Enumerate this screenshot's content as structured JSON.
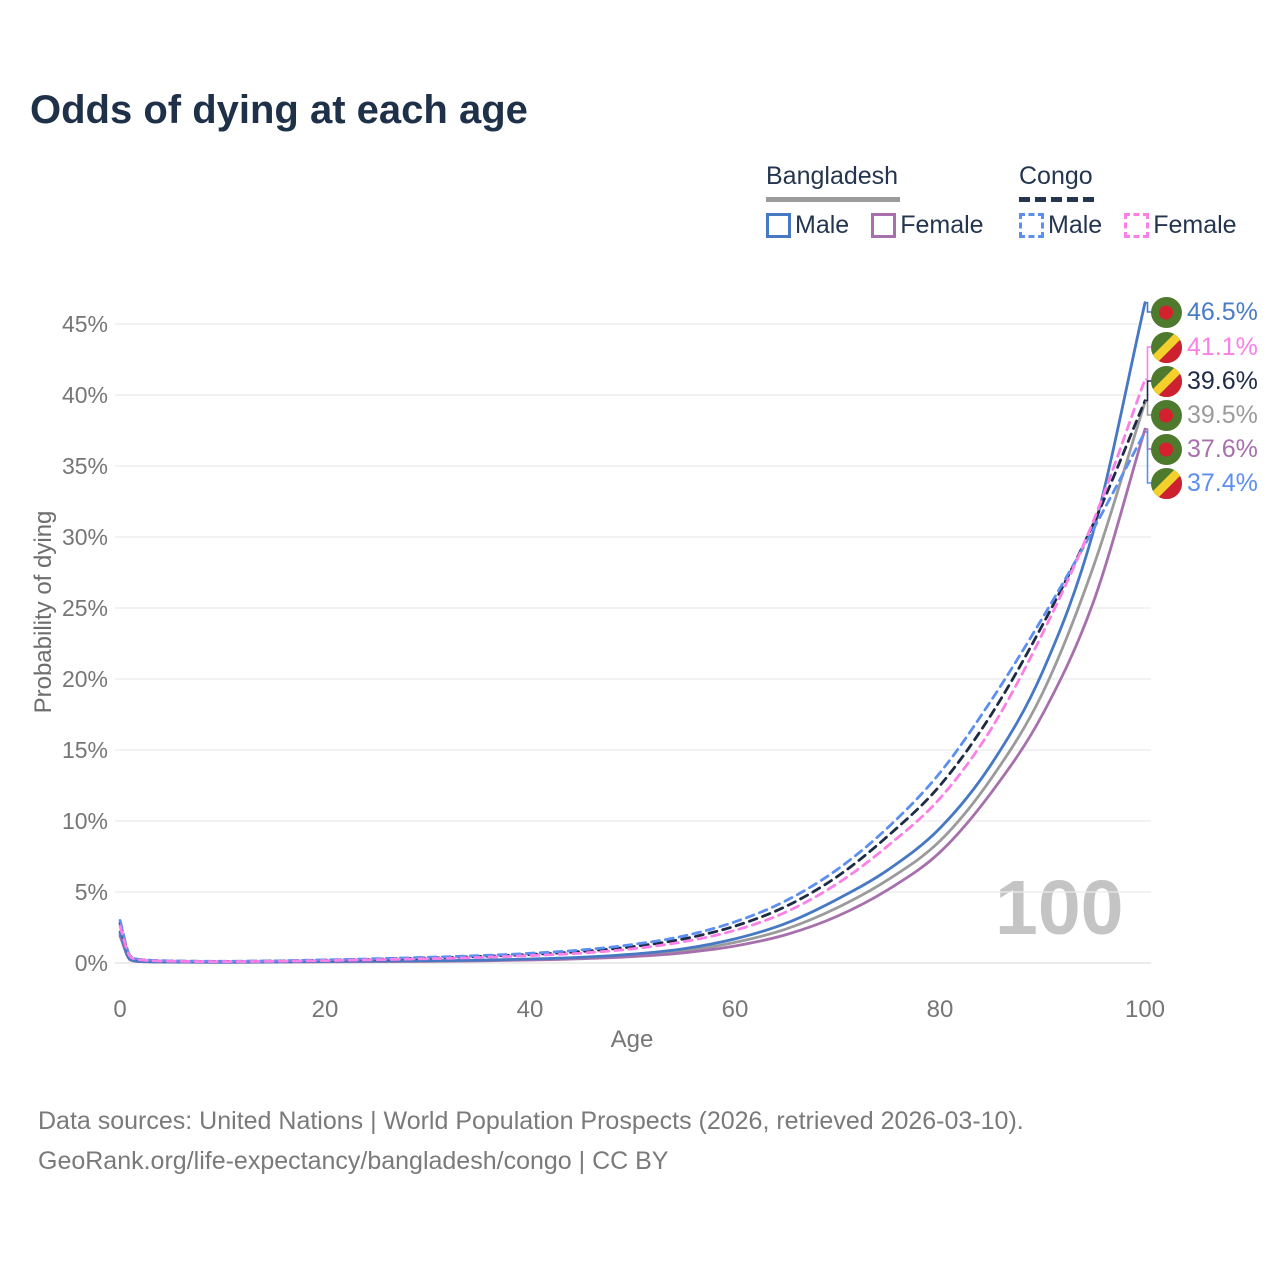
{
  "title": "Odds of dying at each age",
  "legend": {
    "groups": [
      {
        "label": "Bangladesh",
        "line_style": "solid",
        "underline_color": "#9B9B9B",
        "items": [
          {
            "label": "Male",
            "color": "#4678C4"
          },
          {
            "label": "Female",
            "color": "#A770AD"
          }
        ]
      },
      {
        "label": "Congo",
        "line_style": "dashed",
        "underline_color": "#24364F",
        "items": [
          {
            "label": "Male",
            "color": "#5D8FF0"
          },
          {
            "label": "Female",
            "color": "#FA80E8"
          }
        ]
      }
    ]
  },
  "axes": {
    "y_title": "Probability of dying",
    "x_title": "Age",
    "y_ticks": [
      "0%",
      "5%",
      "10%",
      "15%",
      "20%",
      "25%",
      "30%",
      "35%",
      "40%",
      "45%"
    ],
    "x_ticks": [
      "0",
      "20",
      "40",
      "60",
      "80",
      "100"
    ]
  },
  "watermark": "100",
  "source_line1": "Data sources: United Nations | World Population Prospects (2026, retrieved 2026-03-10).",
  "source_line2": "GeoRank.org/life-expectancy/bangladesh/congo | CC BY",
  "flags": {
    "bangladesh": {
      "field": "#4E7A2E",
      "disc": "#D5202F"
    },
    "congo": {
      "green": "#4E7A2E",
      "yellow": "#F5D02C",
      "red": "#CE2030"
    }
  },
  "chart_data": {
    "type": "line",
    "title": "Odds of dying at each age",
    "xlabel": "Age",
    "ylabel": "Probability of dying",
    "xlim": [
      0,
      100
    ],
    "ylim": [
      0,
      47
    ],
    "grid_step_pct": 5,
    "x": [
      0,
      1,
      2,
      5,
      10,
      15,
      20,
      25,
      30,
      35,
      40,
      45,
      50,
      55,
      60,
      65,
      70,
      75,
      80,
      85,
      90,
      95,
      100
    ],
    "series": [
      {
        "name": "Bangladesh Total",
        "country": "bangladesh",
        "sex": "total",
        "color": "#9B9B9B",
        "dashed": false,
        "values": [
          2.05,
          0.24,
          0.11,
          0.065,
          0.055,
          0.07,
          0.1,
          0.12,
          0.14,
          0.17,
          0.24,
          0.35,
          0.53,
          0.85,
          1.45,
          2.4,
          3.9,
          5.9,
          8.6,
          13.0,
          19.0,
          28.0,
          39.5
        ]
      },
      {
        "name": "Bangladesh Female",
        "country": "bangladesh",
        "sex": "female",
        "color": "#A770AD",
        "dashed": false,
        "values": [
          1.9,
          0.22,
          0.1,
          0.06,
          0.05,
          0.06,
          0.08,
          0.1,
          0.12,
          0.15,
          0.21,
          0.3,
          0.45,
          0.72,
          1.2,
          2.0,
          3.3,
          5.2,
          7.8,
          12.0,
          17.5,
          25.5,
          37.6
        ]
      },
      {
        "name": "Bangladesh Male",
        "country": "bangladesh",
        "sex": "male",
        "color": "#4678C4",
        "dashed": false,
        "values": [
          2.2,
          0.25,
          0.12,
          0.07,
          0.06,
          0.08,
          0.12,
          0.14,
          0.16,
          0.2,
          0.28,
          0.4,
          0.62,
          1.0,
          1.7,
          2.8,
          4.5,
          6.6,
          9.5,
          14.0,
          20.5,
          30.5,
          46.5
        ]
      },
      {
        "name": "Congo Total",
        "country": "congo",
        "sex": "total",
        "color": "#1E2B45",
        "dashed": true,
        "values": [
          2.8,
          0.48,
          0.24,
          0.14,
          0.11,
          0.14,
          0.2,
          0.27,
          0.35,
          0.46,
          0.6,
          0.81,
          1.15,
          1.7,
          2.6,
          4.0,
          6.1,
          9.0,
          12.5,
          17.5,
          23.8,
          31.0,
          39.6
        ]
      },
      {
        "name": "Congo Male",
        "country": "congo",
        "sex": "male",
        "color": "#5D8FF0",
        "dashed": true,
        "values": [
          3.0,
          0.5,
          0.25,
          0.15,
          0.12,
          0.15,
          0.22,
          0.3,
          0.4,
          0.52,
          0.68,
          0.92,
          1.3,
          1.9,
          2.9,
          4.4,
          6.6,
          9.6,
          13.4,
          18.5,
          24.3,
          30.6,
          37.4
        ]
      },
      {
        "name": "Congo Female",
        "country": "congo",
        "sex": "female",
        "color": "#FA80E8",
        "dashed": true,
        "values": [
          2.6,
          0.45,
          0.22,
          0.13,
          0.1,
          0.12,
          0.17,
          0.23,
          0.3,
          0.39,
          0.52,
          0.7,
          1.0,
          1.5,
          2.3,
          3.6,
          5.6,
          8.3,
          11.6,
          16.5,
          23.2,
          31.2,
          41.1
        ]
      }
    ],
    "end_labels": [
      {
        "text": "46.5%",
        "series_index": 2,
        "flag": "bangladesh",
        "color": "#4A7CC5"
      },
      {
        "text": "41.1%",
        "series_index": 5,
        "flag": "congo",
        "color": "#FA80E8"
      },
      {
        "text": "39.6%",
        "series_index": 3,
        "flag": "congo",
        "color": "#1E2B45"
      },
      {
        "text": "39.5%",
        "series_index": 0,
        "flag": "bangladesh",
        "color": "#9B9B9B"
      },
      {
        "text": "37.6%",
        "series_index": 1,
        "flag": "bangladesh",
        "color": "#A770AD"
      },
      {
        "text": "37.4%",
        "series_index": 4,
        "flag": "congo",
        "color": "#5D8FF0"
      }
    ]
  }
}
